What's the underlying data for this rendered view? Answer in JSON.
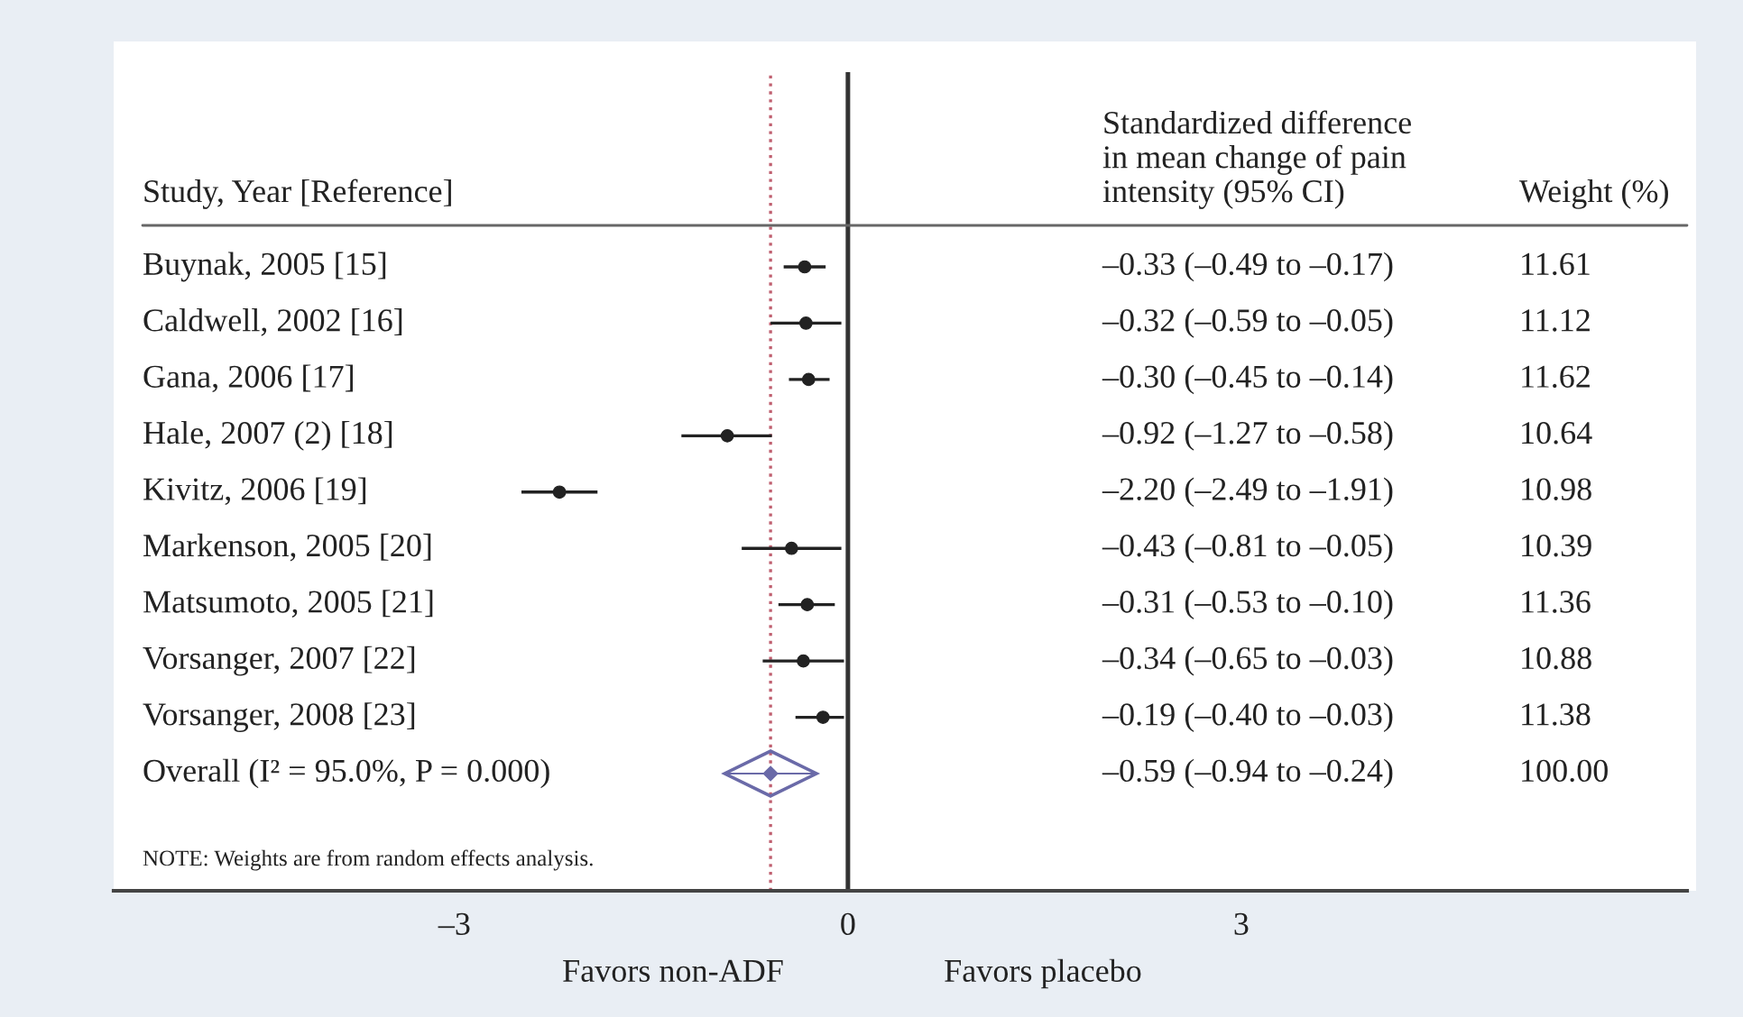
{
  "chart_data": {
    "type": "scatter",
    "orientation": "horizontal",
    "categories": [
      "Buynak, 2005 [15]",
      "Caldwell, 2002 [16]",
      "Gana, 2006 [17]",
      "Hale, 2007 (2) [18]",
      "Kivitz, 2006 [19]",
      "Markenson, 2005 [20]",
      "Matsumoto, 2005 [21]",
      "Vorsanger, 2007 [22]",
      "Vorsanger, 2008 [23]",
      "Overall (I² = 95.0%, P = 0.000)"
    ],
    "series": [
      {
        "color": "#222222",
        "values": [
          -0.33,
          -0.32,
          -0.3,
          -0.92,
          -2.2,
          -0.43,
          -0.31,
          -0.34,
          -0.19,
          null
        ],
        "errors": [
          [
            -0.49,
            -0.17
          ],
          [
            -0.59,
            -0.05
          ],
          [
            -0.45,
            -0.14
          ],
          [
            -1.27,
            -0.58
          ],
          [
            -2.49,
            -1.91
          ],
          [
            -0.81,
            -0.05
          ],
          [
            -0.53,
            -0.1
          ],
          [
            -0.65,
            -0.03
          ],
          [
            -0.4,
            -0.03
          ],
          null
        ]
      },
      {
        "color": "#6a6aa8",
        "marker": "diamond",
        "values": [
          null,
          null,
          null,
          null,
          null,
          null,
          null,
          null,
          null,
          -0.59
        ],
        "errors": [
          null,
          null,
          null,
          null,
          null,
          null,
          null,
          null,
          null,
          [
            -0.94,
            -0.24
          ]
        ]
      }
    ],
    "xlim": [
      -5.6,
      6.4
    ],
    "xticks": [
      {
        "value": -3,
        "label": "–3"
      },
      0,
      3
    ],
    "marker": "circle",
    "grid": false,
    "legend": false,
    "ref_lines": [
      {
        "axis": "x",
        "value": 0,
        "color": "#333333",
        "line_style": "solid"
      },
      {
        "axis": "x",
        "value": -0.59,
        "color": "#c06070",
        "line_style": "dotted"
      }
    ],
    "annotations": [
      "Study, Year [Reference]",
      "Standardized difference\nin mean change of pain\nintensity (95% CI)",
      "Weight (%)",
      "NOTE: Weights are from random effects analysis.",
      "Favors non-ADF",
      "Favors placebo",
      "–0.33 (–0.49 to –0.17)",
      "–0.32 (–0.59 to –0.05)",
      "–0.30 (–0.45 to –0.14)",
      "–0.92 (–1.27 to –0.58)",
      "–2.20 (–2.49 to –1.91)",
      "–0.43 (–0.81 to –0.05)",
      "–0.31 (–0.53 to –0.10)",
      "–0.34 (–0.65 to –0.03)",
      "–0.19 (–0.40 to –0.03)",
      "–0.59 (–0.94 to –0.24)",
      "11.61",
      "11.12",
      "11.62",
      "10.64",
      "10.98",
      "10.39",
      "11.36",
      "10.88",
      "11.38",
      "100.00"
    ]
  }
}
